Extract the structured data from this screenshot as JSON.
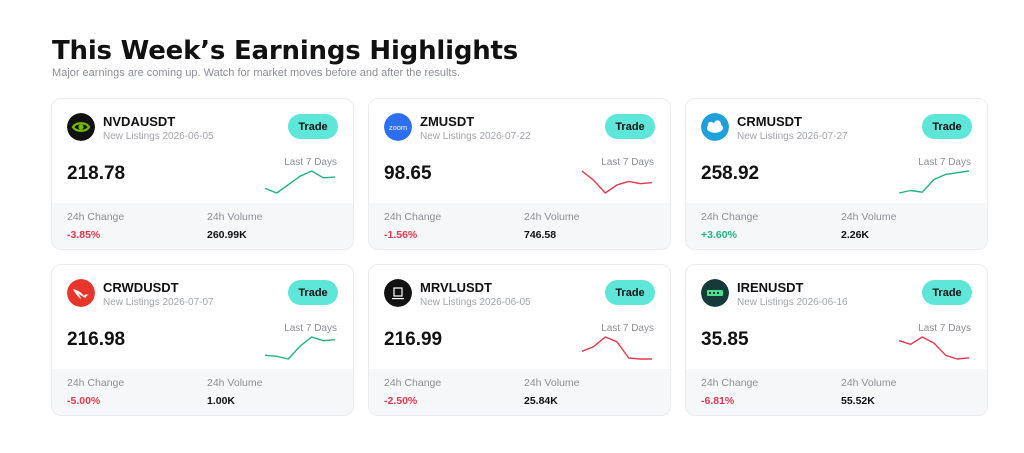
{
  "header": {
    "title": "This Week’s Earnings Highlights",
    "subtitle": "Major earnings are coming up. Watch for market moves before and after the results."
  },
  "labels": {
    "trade": "Trade",
    "last_7_days": "Last 7 Days",
    "change_24h": "24h Change",
    "volume_24h": "24h Volume"
  },
  "colors": {
    "accent": "#5ee6d8",
    "negative": "#e0394e",
    "positive": "#1fb47a"
  },
  "cards": [
    {
      "symbol": "NVDAUSDT",
      "listing": "New Listings 2026-06-05",
      "price": "218.78",
      "change": "-3.85%",
      "volume": "260.99K",
      "trend": "up",
      "icon": "nvidia-logo-icon",
      "spark": [
        1,
        0.4,
        1.5,
        2.6,
        3.3,
        2.4,
        2.5
      ]
    },
    {
      "symbol": "ZMUSDT",
      "listing": "New Listings 2026-07-22",
      "price": "98.65",
      "change": "-1.56%",
      "volume": "746.58",
      "trend": "down",
      "icon": "zoom-logo-icon",
      "spark": [
        3.2,
        2.4,
        1.3,
        2.0,
        2.3,
        2.1,
        2.2
      ]
    },
    {
      "symbol": "CRMUSDT",
      "listing": "New Listings 2026-07-27",
      "price": "258.92",
      "change": "+3.60%",
      "volume": "2.26K",
      "trend": "up",
      "icon": "salesforce-logo-icon",
      "spark": [
        0.6,
        0.9,
        0.7,
        2.2,
        2.8,
        3.0,
        3.2
      ]
    },
    {
      "symbol": "CRWDUSDT",
      "listing": "New Listings 2026-07-07",
      "price": "216.98",
      "change": "-5.00%",
      "volume": "1.00K",
      "trend": "up",
      "icon": "crowdstrike-logo-icon",
      "spark": [
        1,
        0.9,
        0.6,
        2.0,
        3.0,
        2.6,
        2.7
      ]
    },
    {
      "symbol": "MRVLUSDT",
      "listing": "New Listings 2026-06-05",
      "price": "216.99",
      "change": "-2.50%",
      "volume": "25.84K",
      "trend": "down",
      "icon": "marvell-logo-icon",
      "spark": [
        1.6,
        2.1,
        3.1,
        2.6,
        0.9,
        0.8,
        0.8
      ]
    },
    {
      "symbol": "IRENUSDT",
      "listing": "New Listings 2026-06-16",
      "price": "35.85",
      "change": "-6.81%",
      "volume": "55.52K",
      "trend": "down",
      "icon": "iren-logo-icon",
      "spark": [
        2.3,
        2.0,
        2.6,
        2.1,
        1.1,
        0.8,
        0.9
      ]
    }
  ]
}
